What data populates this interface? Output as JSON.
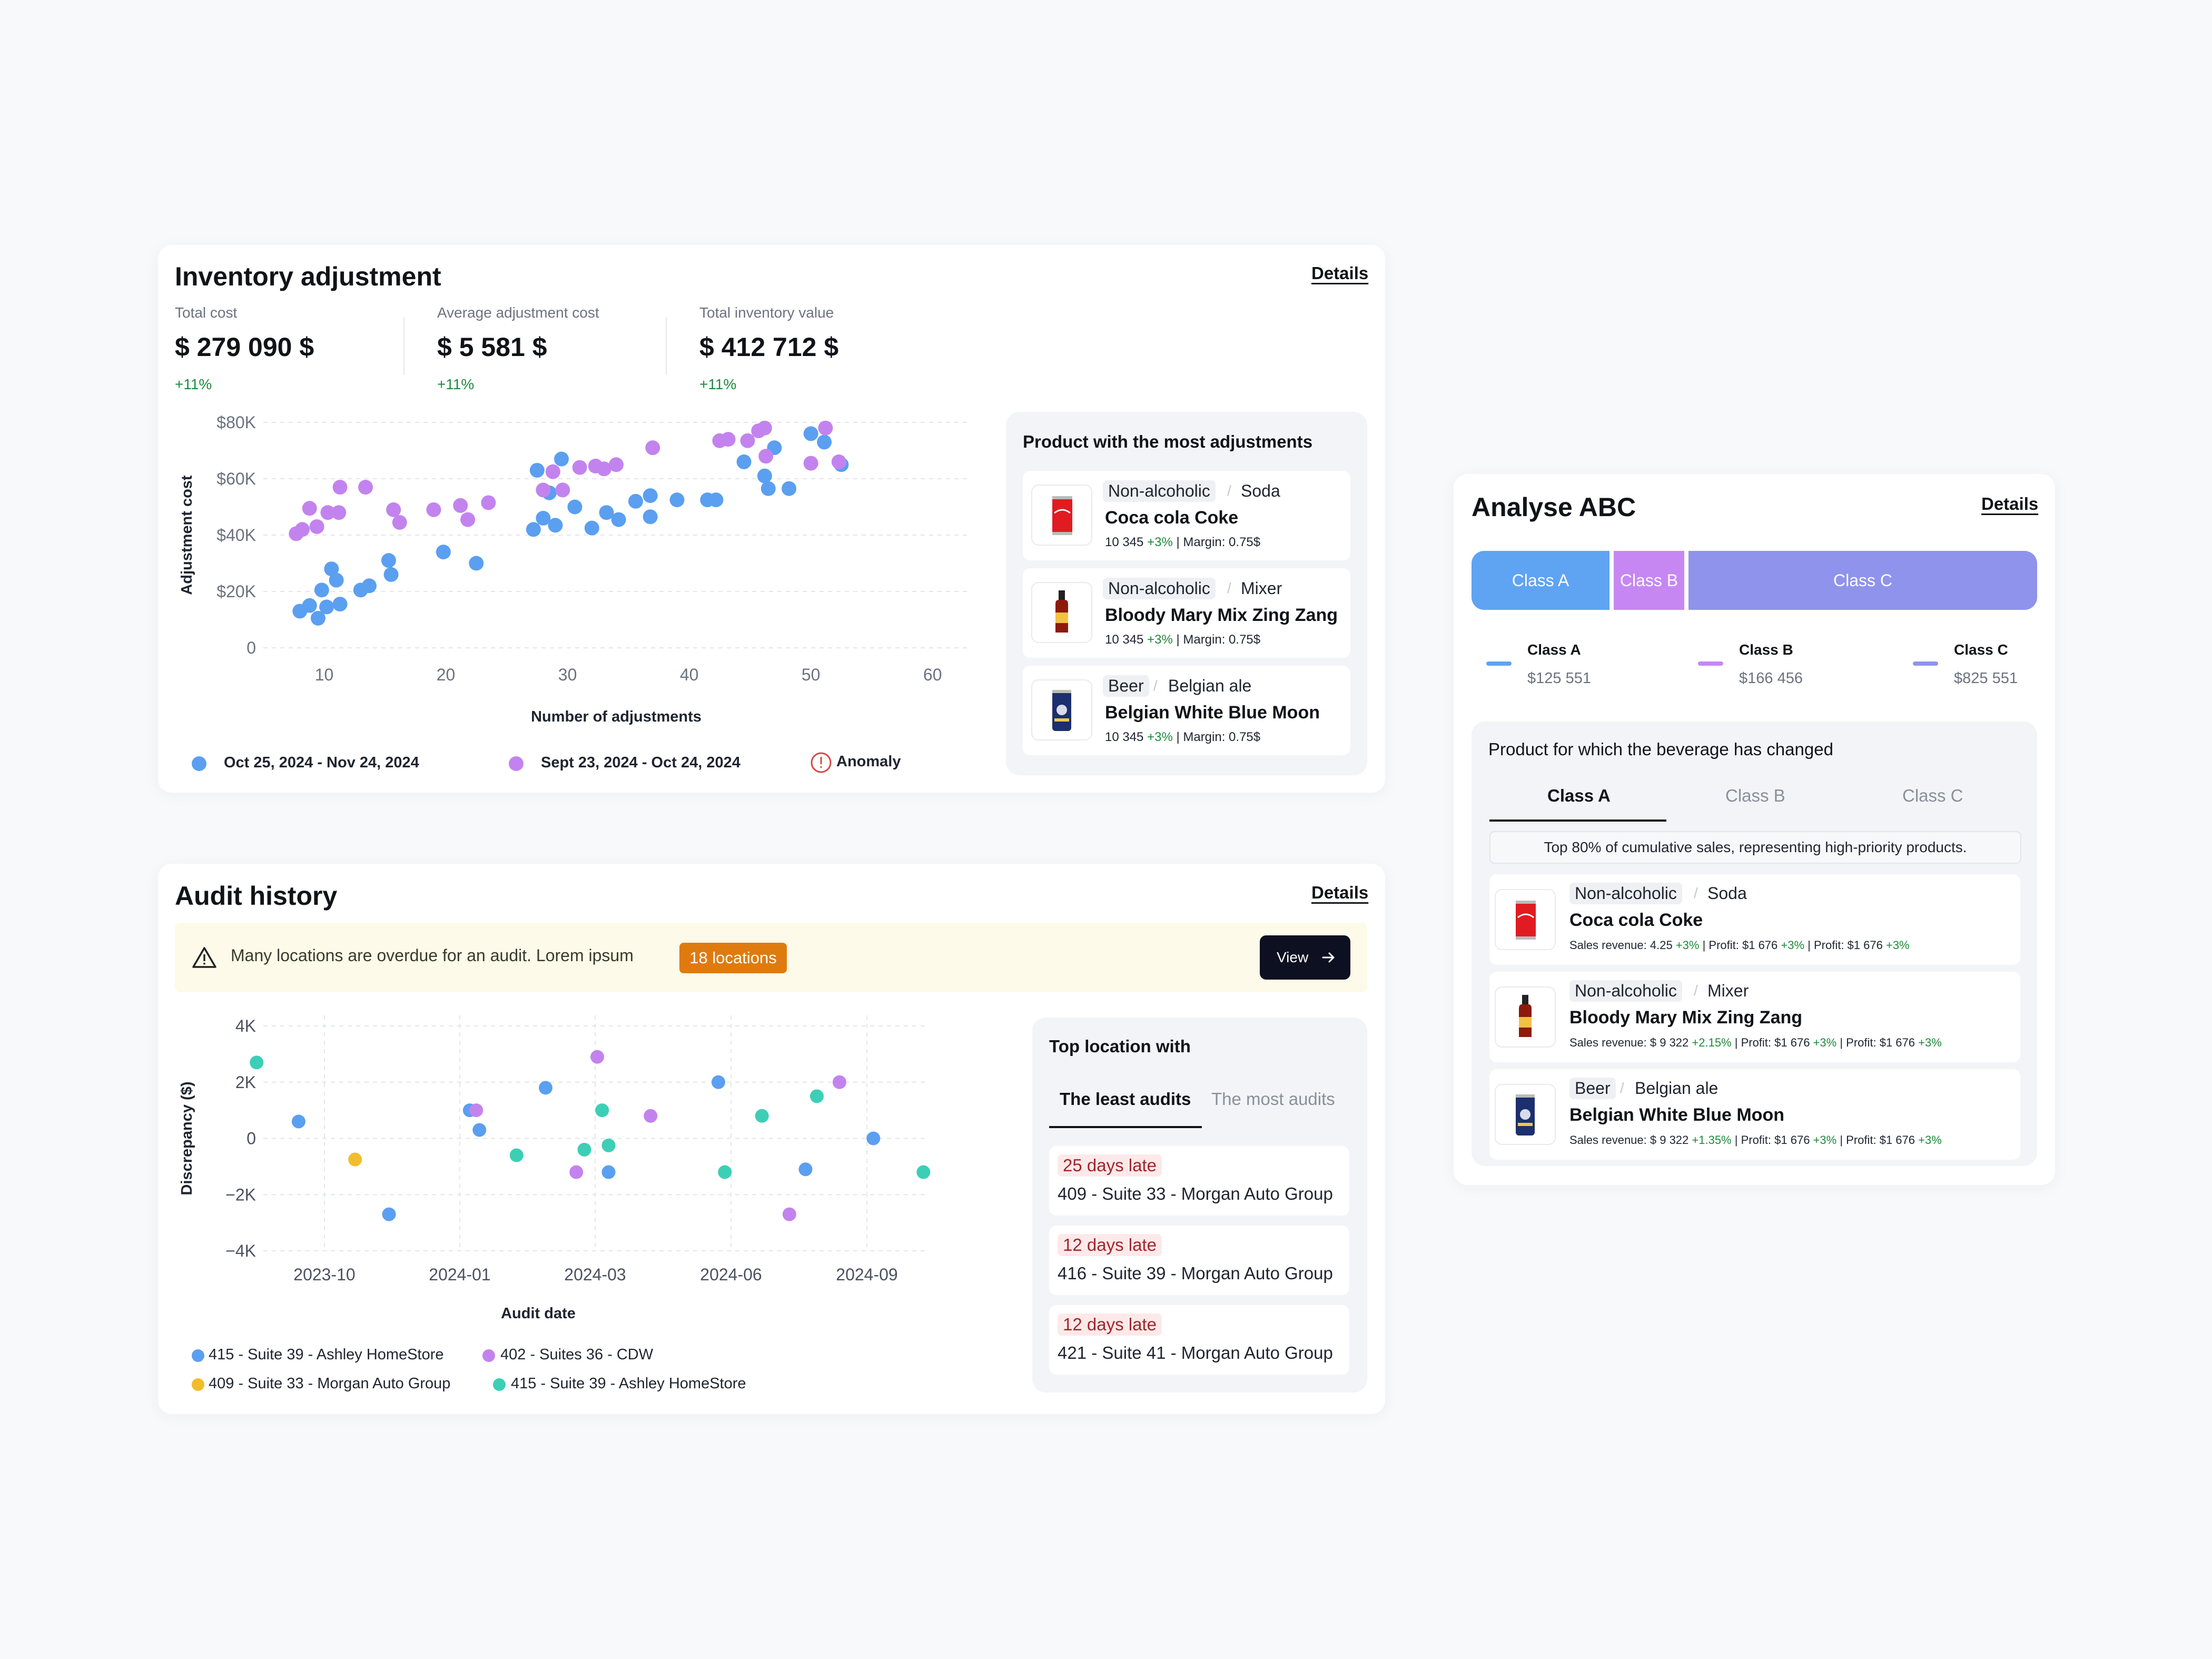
{
  "inventory": {
    "title": "Inventory adjustment",
    "details": "Details",
    "kpis": [
      {
        "label": "Total cost",
        "value": "$ 279 090 $",
        "change": "+11%"
      },
      {
        "label": "Average adjustment cost",
        "value": "$ 5 581 $",
        "change": "+11%"
      },
      {
        "label": "Total inventory value",
        "value": "$ 412 712 $",
        "change": "+11%"
      }
    ],
    "legend": {
      "series1": "Oct 25, 2024 - Nov 24, 2024",
      "series2": "Sept 23, 2024 - Oct 24, 2024",
      "anomaly": "Anomaly"
    },
    "products_title": "Product with the most adjustments",
    "products": [
      {
        "cat": "Non-alcoholic",
        "sub": "Soda",
        "name": "Coca cola Coke",
        "qty": "10 345",
        "change": "+3%",
        "margin": " | Margin: 0.75$"
      },
      {
        "cat": "Non-alcoholic",
        "sub": "Mixer",
        "name": "Bloody Mary Mix Zing Zang",
        "qty": "10 345",
        "change": "+3%",
        "margin": " | Margin: 0.75$"
      },
      {
        "cat": "Beer",
        "sub": "Belgian ale",
        "name": "Belgian White Blue Moon",
        "qty": "10 345",
        "change": "+3%",
        "margin": " | Margin: 0.75$"
      }
    ]
  },
  "audit": {
    "title": "Audit history",
    "details": "Details",
    "alert_text": "Many locations are overdue for an audit. Lorem ipsum",
    "alert_badge": "18 locations",
    "view_button": "View",
    "top_title": "Top location with",
    "tabs": [
      "The least audits",
      "The most audits"
    ],
    "locations": [
      {
        "late": "25 days late",
        "name": "409 - Suite 33 - Morgan Auto Group"
      },
      {
        "late": "12 days late",
        "name": "416 - Suite 39 - Morgan Auto Group"
      },
      {
        "late": "12 days late",
        "name": "421 - Suite 41 - Morgan Auto Group"
      }
    ]
  },
  "abc": {
    "title": "Analyse ABC",
    "details": "Details",
    "bar": [
      "Class A",
      "Class B",
      "Class C"
    ],
    "legend": [
      {
        "name": "Class A",
        "value": "$125 551"
      },
      {
        "name": "Class B",
        "value": "$166 456"
      },
      {
        "name": "Class C",
        "value": "$825 551"
      }
    ],
    "panel_title": "Product for which the beverage has changed",
    "tabs": [
      "Class A",
      "Class B",
      "Class C"
    ],
    "info": "Top 80% of cumulative sales, representing high-priority products.",
    "products": [
      {
        "cat": "Non-alcoholic",
        "sub": "Soda",
        "name": "Coca cola Coke",
        "rev": "Sales revenue: 4.25 ",
        "rev_ch": "+3%",
        "p1": " | Profit: $1 676 ",
        "p1_ch": "+3%",
        "p2": " | Profit: $1 676 ",
        "p2_ch": "+3%"
      },
      {
        "cat": "Non-alcoholic",
        "sub": "Mixer",
        "name": "Bloody Mary Mix Zing Zang",
        "rev": "Sales revenue: $ 9 322 ",
        "rev_ch": "+2.15%",
        "p1": " | Profit: $1 676 ",
        "p1_ch": "+3%",
        "p2": " | Profit: $1 676 ",
        "p2_ch": "+3%"
      },
      {
        "cat": "Beer",
        "sub": "Belgian ale",
        "name": "Belgian White Blue Moon",
        "rev": "Sales revenue: $ 9 322 ",
        "rev_ch": "+1.35%",
        "p1": " | Profit: $1 676 ",
        "p1_ch": "+3%",
        "p2": " | Profit: $1 676 ",
        "p2_ch": "+3%"
      }
    ]
  },
  "colors": {
    "blue": "#5b9ff0",
    "purple": "#c383ee",
    "teal": "#3ccfb6",
    "yellow": "#f2bd2b",
    "classA": "#5fa3f3",
    "classB": "#c687f3",
    "classC": "#8f93ec"
  },
  "chart_data": [
    {
      "type": "scatter",
      "xlabel": "Number of adjustments",
      "ylabel": "Adjustment cost",
      "xticks": [
        10,
        20,
        30,
        40,
        50,
        60
      ],
      "yticks": [
        "0",
        "$20K",
        "$40K",
        "$60K",
        "$80K"
      ],
      "xlim": [
        5,
        63
      ],
      "ylim": [
        0,
        80000
      ],
      "series": [
        {
          "name": "Oct 25, 2024 - Nov 24, 2024",
          "color": "#5b9ff0",
          "points": [
            [
              8,
              13000
            ],
            [
              8.8,
              15000
            ],
            [
              9.5,
              10500
            ],
            [
              9.8,
              20500
            ],
            [
              10.2,
              14500
            ],
            [
              10.6,
              28000
            ],
            [
              11,
              24000
            ],
            [
              11.3,
              15500
            ],
            [
              13,
              20500
            ],
            [
              13.7,
              22000
            ],
            [
              15.3,
              31000
            ],
            [
              15.5,
              26000
            ],
            [
              19.8,
              34000
            ],
            [
              22.5,
              30000
            ],
            [
              27.2,
              42000
            ],
            [
              27.5,
              63000
            ],
            [
              28,
              46000
            ],
            [
              28.5,
              55000
            ],
            [
              29,
              43500
            ],
            [
              29.5,
              67000
            ],
            [
              30.6,
              50000
            ],
            [
              32,
              42500
            ],
            [
              33.2,
              48000
            ],
            [
              34.2,
              45500
            ],
            [
              35.6,
              52000
            ],
            [
              36.8,
              54000
            ],
            [
              36.8,
              46500
            ],
            [
              39,
              52500
            ],
            [
              41.5,
              52500
            ],
            [
              42.2,
              52500
            ],
            [
              44.5,
              66000
            ],
            [
              46.2,
              61000
            ],
            [
              46.5,
              56500
            ],
            [
              47,
              71000
            ],
            [
              48.2,
              56500
            ],
            [
              50,
              76000
            ],
            [
              51.1,
              73000
            ],
            [
              52.5,
              65000
            ]
          ]
        },
        {
          "name": "Sept 23, 2024 - Oct 24, 2024",
          "color": "#c383ee",
          "points": [
            [
              7.7,
              40500
            ],
            [
              8.2,
              42000
            ],
            [
              8.8,
              49500
            ],
            [
              9.4,
              43000
            ],
            [
              10.3,
              48000
            ],
            [
              11.2,
              48000
            ],
            [
              11.3,
              57000
            ],
            [
              13.4,
              57000
            ],
            [
              15.7,
              49000
            ],
            [
              16.2,
              44500
            ],
            [
              19,
              49000
            ],
            [
              21.2,
              50500
            ],
            [
              21.8,
              45500
            ],
            [
              23.5,
              51500
            ],
            [
              28,
              56000
            ],
            [
              28.8,
              62500
            ],
            [
              29.6,
              56000
            ],
            [
              31,
              64000
            ],
            [
              32.3,
              64500
            ],
            [
              33,
              63500
            ],
            [
              34,
              65000
            ],
            [
              37,
              71000
            ],
            [
              42.5,
              73500
            ],
            [
              43.2,
              74000
            ],
            [
              44.8,
              73500
            ],
            [
              45.7,
              77000
            ],
            [
              46.2,
              78000
            ],
            [
              46.3,
              68000
            ],
            [
              50,
              65500
            ],
            [
              51.2,
              78000
            ],
            [
              52.3,
              66000
            ]
          ]
        }
      ]
    },
    {
      "type": "scatter",
      "xlabel": "Audit date",
      "ylabel": "Discrepancy ($)",
      "xticks": [
        "2023-10",
        "2024-01",
        "2024-03",
        "2024-06",
        "2024-09"
      ],
      "yticks": [
        "4K",
        "2K",
        "0",
        "−2K",
        "−4K"
      ],
      "ylim": [
        -4000,
        4000
      ],
      "series": [
        {
          "name": "415 - Suite 39 - Ashley HomeStore",
          "color": "#5b9ff0",
          "points": [
            [
              "2023-09-15",
              600
            ],
            [
              "2023-11-10",
              -2700
            ],
            [
              "2023-12-30",
              1000
            ],
            [
              "2024-01-05",
              300
            ],
            [
              "2024-02-15",
              1800
            ],
            [
              "2024-03-25",
              -1200
            ],
            [
              "2024-06-01",
              2000
            ],
            [
              "2024-07-25",
              -1100
            ],
            [
              "2024-09-05",
              0
            ]
          ]
        },
        {
          "name": "402 - Suites 36 - CDW",
          "color": "#c383ee",
          "points": [
            [
              "2024-01-03",
              1000
            ],
            [
              "2024-03-05",
              -1200
            ],
            [
              "2024-03-18",
              2900
            ],
            [
              "2024-04-20",
              800
            ],
            [
              "2024-07-15",
              -2700
            ],
            [
              "2024-08-15",
              2000
            ]
          ]
        },
        {
          "name": "409 - Suite 33 - Morgan Auto Group",
          "color": "#f2bd2b",
          "points": [
            [
              "2023-10-20",
              -750
            ]
          ]
        },
        {
          "name": "415 - Suite 39 - Ashley HomeStore",
          "color": "#3ccfb6",
          "points": [
            [
              "2023-08-20",
              2700
            ],
            [
              "2024-01-28",
              -600
            ],
            [
              "2024-03-10",
              -400
            ],
            [
              "2024-03-21",
              1000
            ],
            [
              "2024-03-25",
              -250
            ],
            [
              "2024-06-05",
              -1200
            ],
            [
              "2024-06-28",
              800
            ],
            [
              "2024-08-01",
              1500
            ],
            [
              "2024-10-06",
              -1200
            ]
          ]
        }
      ]
    }
  ]
}
